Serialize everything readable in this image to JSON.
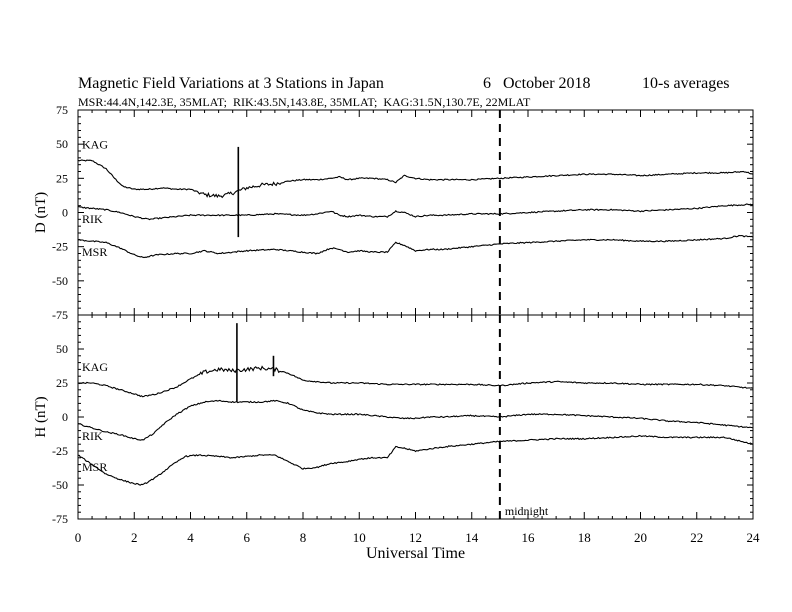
{
  "title": "Magnetic Field Variations at 3 Stations in Japan",
  "date": "6   October 2018",
  "averaging": "10-s averages",
  "stations_line": "MSR:44.4N,142.3E, 35MLAT;  RIK:43.5N,143.8E, 35MLAT;  KAG:31.5N,130.7E, 22MLAT",
  "chart_data": [
    {
      "type": "line",
      "panel": "D",
      "ylabel": "D (nT)",
      "ylim": [
        -75,
        75
      ],
      "yticks": [
        75,
        50,
        25,
        0,
        -25,
        -50,
        -75
      ],
      "xlim": [
        0,
        24
      ],
      "series": [
        {
          "name": "KAG",
          "x": [
            0,
            0.5,
            1,
            1.3,
            1.6,
            2,
            2.5,
            3,
            3.5,
            4,
            4.5,
            5,
            5.3,
            5.6,
            6,
            6.5,
            7,
            7.5,
            8,
            8.5,
            9,
            9.3,
            9.6,
            10,
            10.5,
            11,
            11.3,
            11.6,
            12,
            12.5,
            13,
            14,
            15,
            16,
            17,
            18,
            19,
            20,
            21,
            22,
            23,
            23.7,
            24
          ],
          "y": [
            38,
            38,
            32,
            25,
            19,
            17,
            17,
            18,
            17,
            17,
            13,
            12,
            13,
            15,
            18,
            20,
            21,
            23,
            24,
            24,
            25,
            26,
            24,
            25,
            25,
            24,
            22,
            27,
            25,
            24,
            24,
            24,
            25,
            26,
            27,
            28,
            28,
            27,
            28,
            29,
            29,
            30,
            28
          ]
        },
        {
          "name": "RIK",
          "x": [
            0,
            0.5,
            1,
            1.5,
            2,
            2.5,
            3,
            3.5,
            4,
            5,
            6,
            7,
            8,
            8.5,
            9,
            9.3,
            9.6,
            10,
            10.5,
            11,
            11.3,
            11.6,
            12,
            12.5,
            13,
            14,
            15,
            16,
            17,
            18,
            19,
            20,
            21,
            22,
            23,
            24
          ],
          "y": [
            4,
            3,
            2,
            0,
            -3,
            -5,
            -4,
            -3,
            -2,
            -2,
            -2,
            -1,
            -2,
            -1,
            1,
            -2,
            -3,
            -2,
            -3,
            -3,
            1,
            0,
            -3,
            -2,
            -2,
            -1,
            -1,
            0,
            1,
            2,
            2,
            1,
            2,
            3,
            5,
            6
          ]
        },
        {
          "name": "MSR",
          "x": [
            0,
            0.5,
            1,
            1.5,
            2,
            2.3,
            2.8,
            3.5,
            4,
            4.5,
            5,
            6,
            7,
            7.5,
            8,
            8.5,
            9,
            9.3,
            9.6,
            10,
            10.5,
            11,
            11.3,
            11.6,
            12,
            12.5,
            13,
            14,
            15,
            16,
            17,
            18,
            19,
            20,
            21,
            22,
            23,
            23.5,
            24
          ],
          "y": [
            -20,
            -21,
            -22,
            -26,
            -31,
            -33,
            -31,
            -30,
            -30,
            -28,
            -30,
            -28,
            -27,
            -28,
            -29,
            -30,
            -26,
            -27,
            -29,
            -28,
            -29,
            -29,
            -22,
            -24,
            -28,
            -27,
            -27,
            -25,
            -23,
            -22,
            -21,
            -20,
            -20,
            -21,
            -21,
            -20,
            -19,
            -17,
            -18
          ]
        }
      ],
      "spikes": [
        {
          "x": 5.7,
          "y_min": -18,
          "y_max": 48
        }
      ]
    },
    {
      "type": "line",
      "panel": "H",
      "ylabel": "H (nT)",
      "ylim": [
        -75,
        75
      ],
      "yticks": [
        75,
        50,
        25,
        0,
        -25,
        -50,
        -75
      ],
      "xlim": [
        0,
        24
      ],
      "xticks": [
        0,
        2,
        4,
        6,
        8,
        10,
        12,
        14,
        16,
        18,
        20,
        22,
        24
      ],
      "xlabel": "Universal Time",
      "series": [
        {
          "name": "KAG",
          "x": [
            0,
            0.5,
            1,
            1.5,
            2,
            2.3,
            2.8,
            3.5,
            4,
            4.5,
            5,
            5.5,
            6,
            6.5,
            7,
            7.5,
            8,
            9,
            10,
            11,
            12,
            13,
            14,
            15,
            16,
            17,
            18,
            19,
            20,
            21,
            22,
            23,
            24
          ],
          "y": [
            25,
            25,
            23,
            20,
            17,
            15,
            17,
            22,
            28,
            33,
            35,
            34,
            35,
            36,
            35,
            32,
            27,
            25,
            25,
            24,
            24,
            24,
            24,
            23,
            25,
            26,
            25,
            25,
            24,
            24,
            24,
            23,
            21
          ]
        },
        {
          "name": "RIK",
          "x": [
            0,
            0.5,
            1,
            1.5,
            2,
            2.3,
            2.7,
            3,
            3.5,
            4,
            4.5,
            5,
            5.5,
            6,
            6.5,
            7,
            7.5,
            8,
            8.5,
            9,
            9.5,
            10,
            10.5,
            11,
            11.5,
            12,
            12.5,
            13,
            14,
            15,
            16,
            17,
            18,
            19,
            20,
            21,
            22,
            23,
            24
          ],
          "y": [
            -5,
            -8,
            -11,
            -13,
            -16,
            -17,
            -12,
            -6,
            2,
            8,
            11,
            12,
            11,
            11,
            11,
            12,
            10,
            5,
            3,
            2,
            2,
            2,
            1,
            0,
            -1,
            -1,
            0,
            0,
            1,
            0,
            2,
            2,
            1,
            0,
            -1,
            -3,
            -4,
            -6,
            -8
          ]
        },
        {
          "name": "MSR",
          "x": [
            0,
            0.5,
            1,
            1.5,
            2,
            2.3,
            2.8,
            3.3,
            3.8,
            4.3,
            5,
            5.5,
            6,
            6.5,
            7,
            7.5,
            8,
            8.5,
            9,
            9.5,
            10,
            10.5,
            11,
            11.3,
            11.6,
            12,
            13,
            14,
            15,
            16,
            17,
            18,
            19,
            20,
            21,
            22,
            23,
            24
          ],
          "y": [
            -28,
            -35,
            -42,
            -46,
            -49,
            -50,
            -44,
            -36,
            -29,
            -28,
            -29,
            -30,
            -29,
            -28,
            -28,
            -33,
            -38,
            -37,
            -34,
            -33,
            -31,
            -30,
            -30,
            -22,
            -23,
            -25,
            -22,
            -20,
            -18,
            -17,
            -16,
            -16,
            -15,
            -14,
            -15,
            -15,
            -15,
            -20
          ]
        }
      ],
      "spikes": [
        {
          "x": 5.65,
          "y_min": 11,
          "y_max": 69
        },
        {
          "x": 6.95,
          "y_min": 30,
          "y_max": 45
        }
      ]
    }
  ],
  "midnight": {
    "x": 15,
    "label": "midnight"
  }
}
